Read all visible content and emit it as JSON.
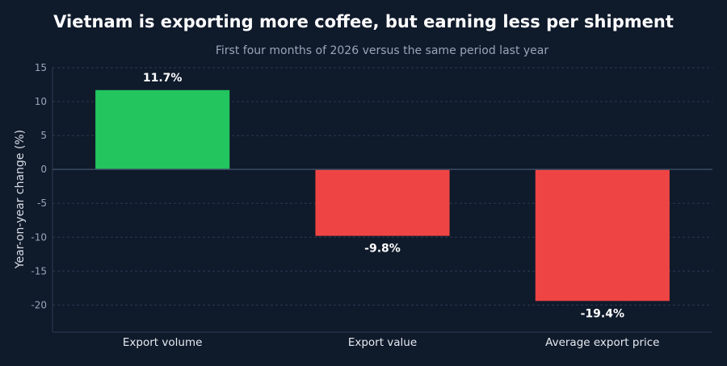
{
  "chart_data": {
    "type": "bar",
    "title": "Vietnam is exporting more coffee, but earning less per shipment",
    "subtitle": "First four months of 2026 versus the same period last year",
    "xlabel": "",
    "ylabel": "Year-on-year change (%)",
    "categories": [
      "Export volume",
      "Export value",
      "Average export price"
    ],
    "values": [
      11.7,
      -9.8,
      -19.4
    ],
    "data_labels": [
      "11.7%",
      "-9.8%",
      "-19.4%"
    ],
    "ylim": [
      -24,
      15
    ],
    "yticks": [
      15,
      10,
      5,
      0,
      -5,
      -10,
      -15,
      -20
    ],
    "ytick_labels": [
      "15",
      "10",
      "5",
      "0",
      "-5",
      "-10",
      "-15",
      "-20"
    ],
    "grid": true,
    "legend": "none",
    "colors": {
      "background": "#0f1a2b",
      "positive": "#22c55e",
      "negative": "#ef4444"
    }
  }
}
